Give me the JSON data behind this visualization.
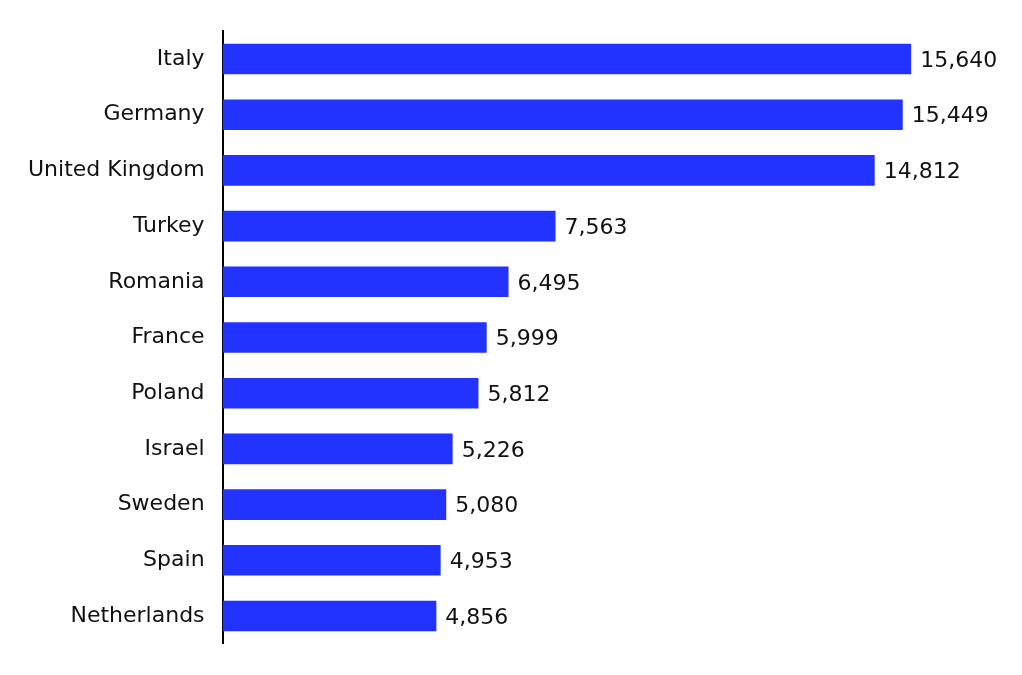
{
  "chart_data": {
    "type": "bar",
    "orientation": "horizontal",
    "categories": [
      "Italy",
      "Germany",
      "United Kingdom",
      "Turkey",
      "Romania",
      "France",
      "Poland",
      "Israel",
      "Sweden",
      "Spain",
      "Netherlands"
    ],
    "values": [
      15640,
      15449,
      14812,
      7563,
      6495,
      5999,
      5812,
      5226,
      5080,
      4953,
      4856
    ],
    "value_labels": [
      "15,640",
      "15,449",
      "14,812",
      "7,563",
      "6,495",
      "5,999",
      "5,812",
      "5,226",
      "5,080",
      "4,953",
      "4,856"
    ],
    "color": "#2233ff",
    "tick_labels": "y",
    "legend": false
  }
}
